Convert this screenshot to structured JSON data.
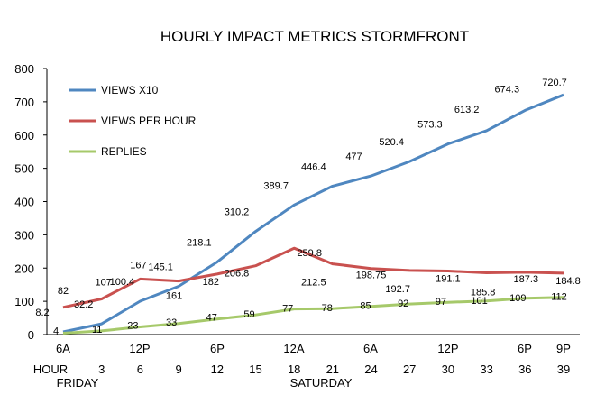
{
  "chart_data": {
    "type": "line",
    "title": "HOURLY IMPACT METRICS STORMFRONT",
    "ylim": [
      0,
      800
    ],
    "y_ticks": [
      "0",
      "100",
      "200",
      "300",
      "400",
      "500",
      "600",
      "700",
      "800"
    ],
    "hours": [
      "3",
      "6",
      "9",
      "12",
      "15",
      "18",
      "21",
      "24",
      "27",
      "30",
      "33",
      "36",
      "39"
    ],
    "hour_row_label": "HOUR",
    "time_of_day_ticks": [
      "6A",
      "12P",
      "6P",
      "12A",
      "6A",
      "12P",
      "6P",
      "9P"
    ],
    "day_labels": [
      "FRIDAY",
      "SATURDAY"
    ],
    "grid": false,
    "legend_position": "top-left",
    "series": [
      {
        "name": "VIEWS X10",
        "color": "#4f87c0",
        "values": [
          8.2,
          32.2,
          100.4,
          145.1,
          218.1,
          310.2,
          389.7,
          446.4,
          477,
          520.4,
          573.3,
          613.2,
          674.3,
          720.7
        ],
        "labels": [
          "8.2",
          "32.2",
          "100.4",
          "145.1",
          "218.1",
          "310.2",
          "389.7",
          "446.4",
          "477",
          "520.4",
          "573.3",
          "613.2",
          "674.3",
          "720.7"
        ]
      },
      {
        "name": "VIEWS PER HOUR",
        "color": "#c9514f",
        "values": [
          82,
          107,
          167,
          161,
          182,
          206.8,
          259.8,
          212.5,
          198.75,
          192.7,
          191.1,
          185.8,
          187.3,
          184.8
        ],
        "labels": [
          "82",
          "107",
          "167",
          "161",
          "182",
          "206.8",
          "259.8",
          "212.5",
          "198.75",
          "192.7",
          "191.1",
          "185.8",
          "187.3",
          "184.8"
        ]
      },
      {
        "name": "REPLIES",
        "color": "#a6c96a",
        "values": [
          4,
          11,
          23,
          33,
          47,
          59,
          77,
          78,
          85,
          92,
          97,
          101,
          109,
          112
        ],
        "labels": [
          "4",
          "11",
          "23",
          "33",
          "47",
          "59",
          "77",
          "78",
          "85",
          "92",
          "97",
          "101",
          "109",
          "112"
        ]
      }
    ]
  }
}
